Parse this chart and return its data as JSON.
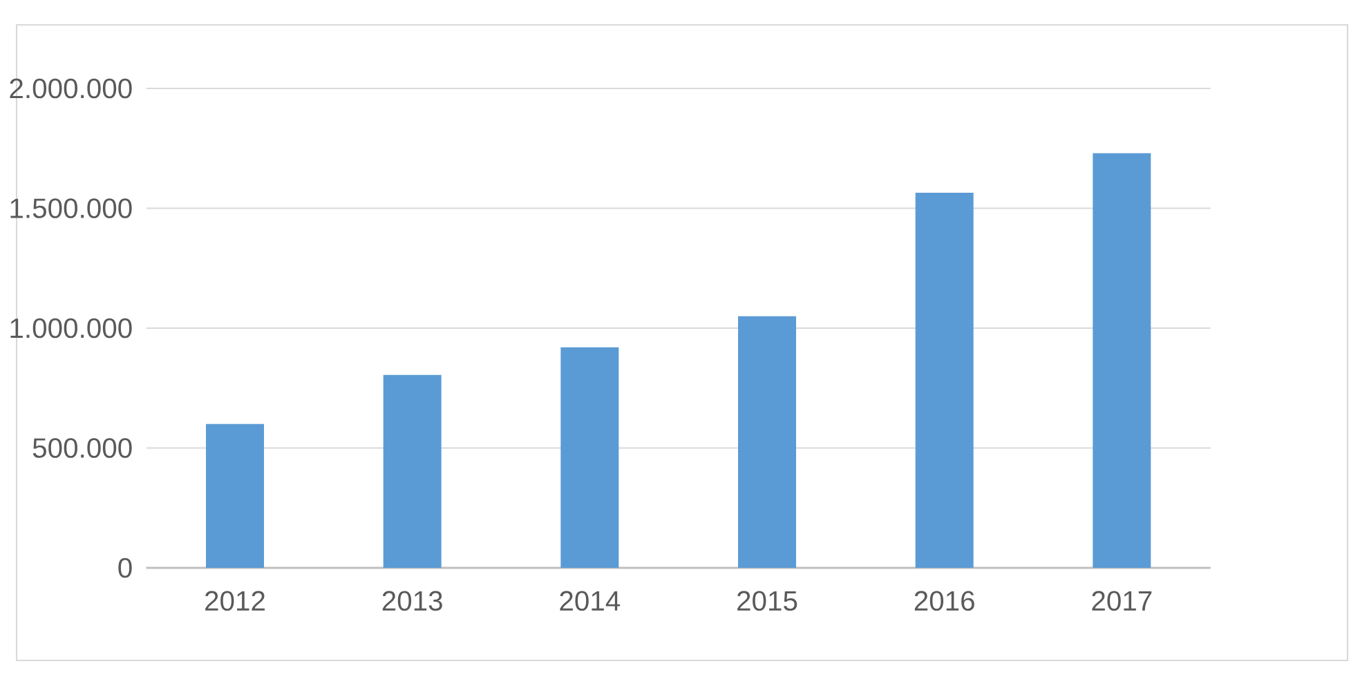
{
  "chart_data": {
    "type": "bar",
    "categories": [
      "2012",
      "2013",
      "2014",
      "2015",
      "2016",
      "2017"
    ],
    "values": [
      600000,
      805000,
      920000,
      1050000,
      1565000,
      1730000
    ],
    "color": "#5b9bd5",
    "ylim": [
      0,
      2000000
    ],
    "yticks": [
      0,
      {
        "value": 500000,
        "label": "500.000"
      },
      {
        "value": 1000000,
        "label": "1.000.000"
      },
      {
        "value": 1500000,
        "label": "1.500.000"
      },
      {
        "value": 2000000,
        "label": "2.000.000"
      }
    ],
    "grid": "y"
  }
}
